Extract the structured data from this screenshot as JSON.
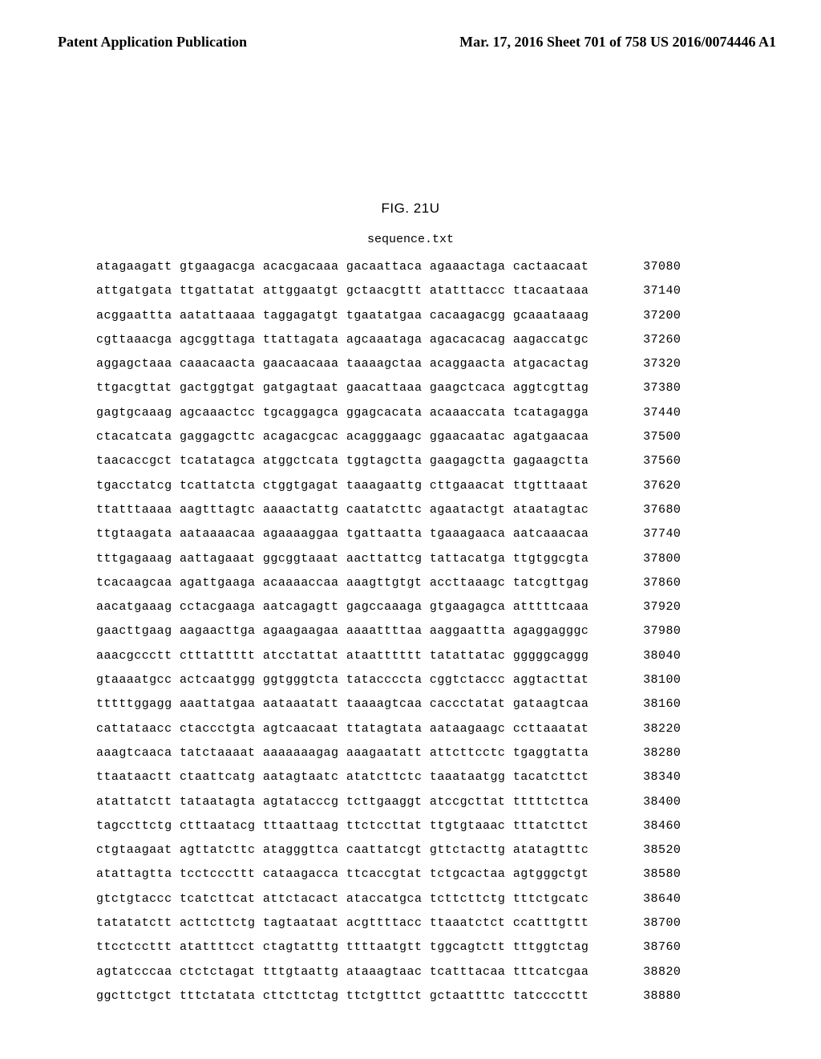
{
  "header": {
    "left": "Patent Application Publication",
    "right": "Mar. 17, 2016  Sheet 701 of 758   US 2016/0074446 A1"
  },
  "figure_label": "FIG. 21U",
  "filename": "sequence.txt",
  "sequence": {
    "rows": [
      {
        "groups": [
          "atagaagatt",
          "gtgaagacga",
          "acacgacaaa",
          "gacaattaca",
          "agaaactaga",
          "cactaacaat"
        ],
        "pos": 37080
      },
      {
        "groups": [
          "attgatgata",
          "ttgattatat",
          "attggaatgt",
          "gctaacgttt",
          "atatttaccc",
          "ttacaataaa"
        ],
        "pos": 37140
      },
      {
        "groups": [
          "acggaattta",
          "aatattaaaa",
          "taggagatgt",
          "tgaatatgaa",
          "cacaagacgg",
          "gcaaataaag"
        ],
        "pos": 37200
      },
      {
        "groups": [
          "cgttaaacga",
          "agcggttaga",
          "ttattagata",
          "agcaaataga",
          "agacacacag",
          "aagaccatgc"
        ],
        "pos": 37260
      },
      {
        "groups": [
          "aggagctaaa",
          "caaacaacta",
          "gaacaacaaa",
          "taaaagctaa",
          "acaggaacta",
          "atgacactag"
        ],
        "pos": 37320
      },
      {
        "groups": [
          "ttgacgttat",
          "gactggtgat",
          "gatgagtaat",
          "gaacattaaa",
          "gaagctcaca",
          "aggtcgttag"
        ],
        "pos": 37380
      },
      {
        "groups": [
          "gagtgcaaag",
          "agcaaactcc",
          "tgcaggagca",
          "ggagcacata",
          "acaaaccata",
          "tcatagagga"
        ],
        "pos": 37440
      },
      {
        "groups": [
          "ctacatcata",
          "gaggagcttc",
          "acagacgcac",
          "acagggaagc",
          "ggaacaatac",
          "agatgaacaa"
        ],
        "pos": 37500
      },
      {
        "groups": [
          "taacaccgct",
          "tcatatagca",
          "atggctcata",
          "tggtagctta",
          "gaagagctta",
          "gagaagctta"
        ],
        "pos": 37560
      },
      {
        "groups": [
          "tgacctatcg",
          "tcattatcta",
          "ctggtgagat",
          "taaagaattg",
          "cttgaaacat",
          "ttgtttaaat"
        ],
        "pos": 37620
      },
      {
        "groups": [
          "ttatttaaaa",
          "aagtttagtc",
          "aaaactattg",
          "caatatcttc",
          "agaatactgt",
          "ataatagtac"
        ],
        "pos": 37680
      },
      {
        "groups": [
          "ttgtaagata",
          "aataaaacaa",
          "agaaaaggaa",
          "tgattaatta",
          "tgaaagaaca",
          "aatcaaacaa"
        ],
        "pos": 37740
      },
      {
        "groups": [
          "tttgagaaag",
          "aattagaaat",
          "ggcggtaaat",
          "aacttattcg",
          "tattacatga",
          "ttgtggcgta"
        ],
        "pos": 37800
      },
      {
        "groups": [
          "tcacaagcaa",
          "agattgaaga",
          "acaaaaccaa",
          "aaagttgtgt",
          "accttaaagc",
          "tatcgttgag"
        ],
        "pos": 37860
      },
      {
        "groups": [
          "aacatgaaag",
          "cctacgaaga",
          "aatcagagtt",
          "gagccaaaga",
          "gtgaagagca",
          "atttttcaaa"
        ],
        "pos": 37920
      },
      {
        "groups": [
          "gaacttgaag",
          "aagaacttga",
          "agaagaagaa",
          "aaaattttaa",
          "aaggaattta",
          "agaggagggc"
        ],
        "pos": 37980
      },
      {
        "groups": [
          "aaacgccctt",
          "ctttattttt",
          "atcctattat",
          "ataatttttt",
          "tatattatac",
          "gggggcaggg"
        ],
        "pos": 38040
      },
      {
        "groups": [
          "gtaaaatgcc",
          "actcaatggg",
          "ggtgggtcta",
          "tataccccta",
          "cggtctaccc",
          "aggtacttat"
        ],
        "pos": 38100
      },
      {
        "groups": [
          "tttttggagg",
          "aaattatgaa",
          "aataaatatt",
          "taaaagtcaa",
          "caccctatat",
          "gataagtcaa"
        ],
        "pos": 38160
      },
      {
        "groups": [
          "cattataacc",
          "ctaccctgta",
          "agtcaacaat",
          "ttatagtata",
          "aataagaagc",
          "ccttaaatat"
        ],
        "pos": 38220
      },
      {
        "groups": [
          "aaagtcaaca",
          "tatctaaaat",
          "aaaaaaagag",
          "aaagaatatt",
          "attcttcctc",
          "tgaggtatta"
        ],
        "pos": 38280
      },
      {
        "groups": [
          "ttaataactt",
          "ctaattcatg",
          "aatagtaatc",
          "atatcttctc",
          "taaataatgg",
          "tacatcttct"
        ],
        "pos": 38340
      },
      {
        "groups": [
          "atattatctt",
          "tataatagta",
          "agtatacccg",
          "tcttgaaggt",
          "atccgcttat",
          "tttttcttca"
        ],
        "pos": 38400
      },
      {
        "groups": [
          "tagccttctg",
          "ctttaatacg",
          "tttaattaag",
          "ttctccttat",
          "ttgtgtaaac",
          "tttatcttct"
        ],
        "pos": 38460
      },
      {
        "groups": [
          "ctgtaagaat",
          "agttatcttc",
          "atagggttca",
          "caattatcgt",
          "gttctacttg",
          "atatagtttc"
        ],
        "pos": 38520
      },
      {
        "groups": [
          "atattagtta",
          "tcctcccttt",
          "cataagacca",
          "ttcaccgtat",
          "tctgcactaa",
          "agtgggctgt"
        ],
        "pos": 38580
      },
      {
        "groups": [
          "gtctgtaccc",
          "tcatcttcat",
          "attctacact",
          "ataccatgca",
          "tcttcttctg",
          "tttctgcatc"
        ],
        "pos": 38640
      },
      {
        "groups": [
          "tatatatctt",
          "acttcttctg",
          "tagtaataat",
          "acgttttacc",
          "ttaaatctct",
          "ccatttgttt"
        ],
        "pos": 38700
      },
      {
        "groups": [
          "ttcctccttt",
          "atattttcct",
          "ctagtatttg",
          "ttttaatgtt",
          "tggcagtctt",
          "tttggtctag"
        ],
        "pos": 38760
      },
      {
        "groups": [
          "agtatcccaa",
          "ctctctagat",
          "tttgtaattg",
          "ataaagtaac",
          "tcatttacaa",
          "tttcatcgaa"
        ],
        "pos": 38820
      },
      {
        "groups": [
          "ggcttctgct",
          "tttctatata",
          "cttcttctag",
          "ttctgtttct",
          "gctaattttc",
          "tatccccttt"
        ],
        "pos": 38880
      }
    ]
  }
}
